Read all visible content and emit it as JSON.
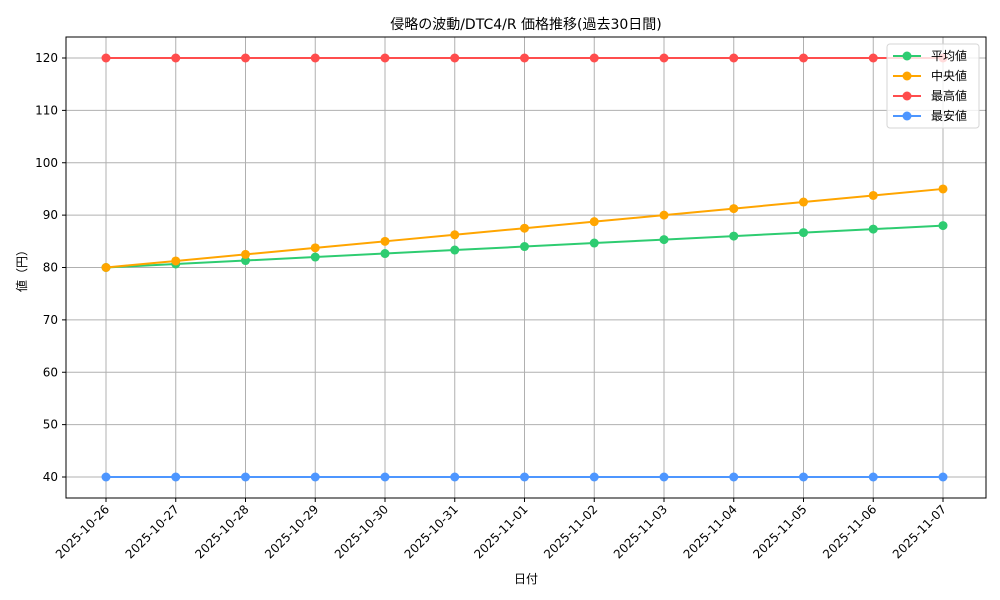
{
  "chart_data": {
    "type": "line",
    "title": "侵略の波動/DTC4/R 価格推移(過去30日間)",
    "xlabel": "日付",
    "ylabel": "値（円）",
    "x": [
      "2025-10-26",
      "2025-10-27",
      "2025-10-28",
      "2025-10-29",
      "2025-10-30",
      "2025-10-31",
      "2025-11-01",
      "2025-11-02",
      "2025-11-03",
      "2025-11-04",
      "2025-11-05",
      "2025-11-06",
      "2025-11-07"
    ],
    "series": [
      {
        "name": "平均値",
        "color": "#2ecc71",
        "values": [
          80,
          80.67,
          81.33,
          82,
          82.67,
          83.33,
          84,
          84.67,
          85.33,
          86,
          86.67,
          87.33,
          88
        ]
      },
      {
        "name": "中央値",
        "color": "#ffa500",
        "values": [
          80,
          81.25,
          82.5,
          83.75,
          85,
          86.25,
          87.5,
          88.75,
          90,
          91.25,
          92.5,
          93.75,
          95
        ]
      },
      {
        "name": "最高値",
        "color": "#ff4d4d",
        "values": [
          120,
          120,
          120,
          120,
          120,
          120,
          120,
          120,
          120,
          120,
          120,
          120,
          120
        ]
      },
      {
        "name": "最安値",
        "color": "#4d96ff",
        "values": [
          40,
          40,
          40,
          40,
          40,
          40,
          40,
          40,
          40,
          40,
          40,
          40,
          40
        ]
      }
    ],
    "yticks": [
      40,
      50,
      60,
      70,
      80,
      90,
      100,
      110,
      120
    ],
    "ylim": [
      36,
      124
    ],
    "grid": true,
    "legend_position": "upper right",
    "x_tick_rotation": 45
  }
}
